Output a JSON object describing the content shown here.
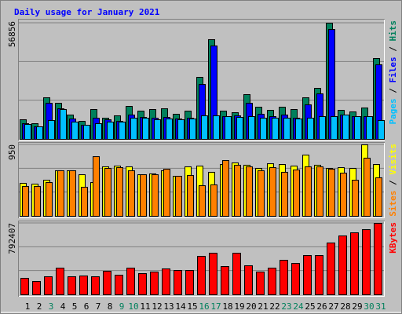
{
  "chart_data": [
    {
      "type": "bar",
      "title": "Daily usage for January 2021",
      "ylim": [
        0,
        56856
      ],
      "yticks": [
        56856
      ],
      "legend_separator": "/",
      "series": [
        {
          "name": "Hits",
          "color": "#00805c",
          "values": [
            9605,
            7684,
            20362,
            17673,
            11910,
            8836,
            14599,
            10373,
            11526,
            16136,
            13831,
            14599,
            14983,
            12294,
            13831,
            30351,
            48792,
            13831,
            13062,
            21899,
            15752,
            14215,
            15752,
            14599,
            20362,
            24972,
            56856,
            14215,
            13447,
            15368,
            39571
          ]
        },
        {
          "name": "Files",
          "color": "#0000ff",
          "values": [
            7684,
            6147,
            17673,
            14983,
            9989,
            6915,
            10373,
            9605,
            8836,
            11910,
            10757,
            10373,
            10757,
            9989,
            10373,
            26894,
            45720,
            11142,
            11526,
            17673,
            12294,
            11142,
            11910,
            10373,
            16905,
            22284,
            53782,
            11910,
            11142,
            11142,
            36499
          ]
        },
        {
          "name": "Pages",
          "color": "#00c0ff",
          "values": [
            7300,
            6147,
            9221,
            14599,
            8452,
            6915,
            7684,
            8452,
            8452,
            10373,
            10373,
            9605,
            9989,
            9605,
            9989,
            11526,
            11526,
            11142,
            10757,
            11142,
            10373,
            10373,
            10373,
            9989,
            10373,
            11142,
            11142,
            11910,
            11142,
            11142,
            9221
          ]
        }
      ]
    },
    {
      "type": "bar",
      "ylim": [
        0,
        950
      ],
      "yticks": [
        950
      ],
      "legend_separator": "/",
      "series": [
        {
          "name": "Visits",
          "color": "#ffff00",
          "values": [
            438,
            428,
            480,
            606,
            606,
            553,
            449,
            658,
            668,
            658,
            553,
            564,
            606,
            532,
            658,
            668,
            585,
            689,
            710,
            679,
            637,
            699,
            689,
            668,
            814,
            679,
            637,
            647,
            637,
            950,
            689
          ]
        },
        {
          "name": "Sites",
          "color": "#ff8000",
          "values": [
            397,
            397,
            449,
            606,
            606,
            386,
            793,
            637,
            647,
            606,
            553,
            553,
            626,
            532,
            543,
            407,
            418,
            741,
            679,
            658,
            606,
            647,
            585,
            616,
            658,
            658,
            626,
            574,
            480,
            773,
            512
          ]
        }
      ]
    },
    {
      "type": "bar",
      "ylim": [
        0,
        792407
      ],
      "yticks": [
        792407
      ],
      "categories": [
        "1",
        "2",
        "3",
        "4",
        "5",
        "6",
        "7",
        "8",
        "9",
        "10",
        "11",
        "12",
        "13",
        "14",
        "15",
        "16",
        "17",
        "18",
        "19",
        "20",
        "21",
        "22",
        "23",
        "24",
        "25",
        "26",
        "27",
        "28",
        "29",
        "30",
        "31"
      ],
      "category_colors": [
        "#000000",
        "#000000",
        "#00805c",
        "#000000",
        "#000000",
        "#000000",
        "#000000",
        "#000000",
        "#00805c",
        "#00805c",
        "#000000",
        "#000000",
        "#000000",
        "#000000",
        "#000000",
        "#00805c",
        "#00805c",
        "#000000",
        "#000000",
        "#000000",
        "#000000",
        "#000000",
        "#00805c",
        "#00805c",
        "#000000",
        "#000000",
        "#000000",
        "#000000",
        "#000000",
        "#00805c",
        "#00805c"
      ],
      "series": [
        {
          "name": "KBytes",
          "color": "#ff0000",
          "values": [
            182868,
            148036,
            200284,
            296072,
            200284,
            208992,
            200284,
            261240,
            217700,
            296072,
            235116,
            252532,
            287364,
            269948,
            269948,
            426692,
            461524,
            313488,
            461524,
            322196,
            252532,
            296072,
            383152,
            348320,
            435400,
            435400,
            574728,
            653100,
            687932,
            722764,
            792407
          ]
        }
      ]
    }
  ]
}
